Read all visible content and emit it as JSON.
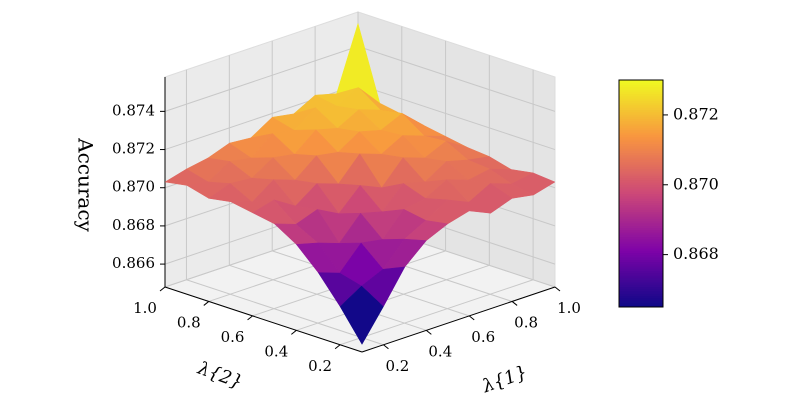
{
  "chart_data": {
    "type": "surface3d",
    "xlabel": "λ{1}",
    "ylabel": "λ{2}",
    "zlabel": "Accuracy",
    "x": [
      0.1,
      0.2,
      0.3,
      0.4,
      0.5,
      0.6,
      0.7,
      0.8,
      0.9,
      1.0
    ],
    "y": [
      0.1,
      0.2,
      0.3,
      0.4,
      0.5,
      0.6,
      0.7,
      0.8,
      0.9,
      1.0
    ],
    "z": [
      [
        0.8652,
        0.8668,
        0.8685,
        0.8695,
        0.87,
        0.8703,
        0.8698,
        0.8702,
        0.87,
        0.8703
      ],
      [
        0.8668,
        0.8675,
        0.868,
        0.8692,
        0.8698,
        0.8705,
        0.87,
        0.8706,
        0.8702,
        0.8704
      ],
      [
        0.8682,
        0.8678,
        0.869,
        0.8688,
        0.87,
        0.8702,
        0.8708,
        0.8704,
        0.8706,
        0.8702
      ],
      [
        0.8693,
        0.869,
        0.8686,
        0.8698,
        0.8695,
        0.8706,
        0.8703,
        0.871,
        0.8707,
        0.8705
      ],
      [
        0.87,
        0.8696,
        0.87,
        0.8694,
        0.8705,
        0.87,
        0.8712,
        0.8708,
        0.8713,
        0.8706
      ],
      [
        0.8702,
        0.8705,
        0.8698,
        0.8706,
        0.8702,
        0.8714,
        0.871,
        0.8716,
        0.8712,
        0.8708
      ],
      [
        0.8704,
        0.87,
        0.8708,
        0.8704,
        0.8713,
        0.8711,
        0.8718,
        0.8715,
        0.872,
        0.871
      ],
      [
        0.8702,
        0.8706,
        0.8705,
        0.8712,
        0.871,
        0.8719,
        0.8716,
        0.8722,
        0.8718,
        0.8712
      ],
      [
        0.8705,
        0.8703,
        0.871,
        0.8708,
        0.8717,
        0.8715,
        0.8723,
        0.872,
        0.8726,
        0.8714
      ],
      [
        0.8703,
        0.8706,
        0.8708,
        0.8712,
        0.8711,
        0.8718,
        0.8716,
        0.8722,
        0.8719,
        0.8752
      ]
    ],
    "xlim": [
      0.1,
      1.0
    ],
    "ylim": [
      0.1,
      1.0
    ],
    "zlim": [
      0.8648,
      0.8758
    ],
    "xticks": [
      0.2,
      0.4,
      0.6,
      0.8,
      {
        "value": 1.0,
        "label": "1.0"
      }
    ],
    "yticks": [
      0.2,
      0.4,
      0.6,
      0.8,
      {
        "value": 1.0,
        "label": "1.0"
      }
    ],
    "zticks": [
      0.866,
      0.868,
      {
        "value": 0.87,
        "label": "0.870"
      },
      0.872,
      0.874
    ],
    "colormap": "plasma",
    "clim": [
      0.8665,
      0.873
    ],
    "cticks": [
      0.868,
      {
        "value": 0.87,
        "label": "0.870"
      },
      0.872
    ],
    "grid": true
  }
}
